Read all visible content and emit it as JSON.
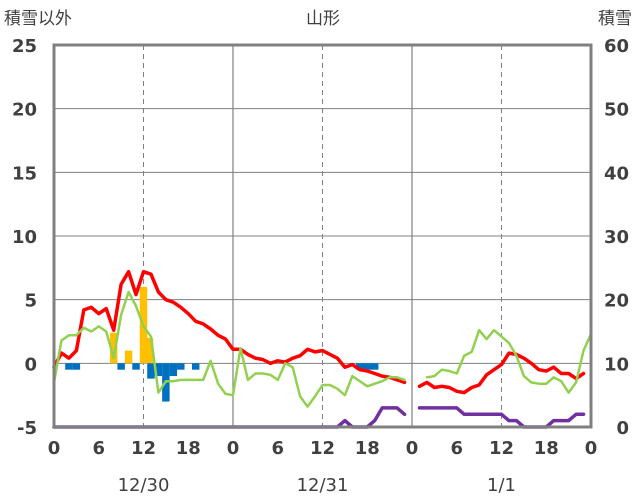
{
  "chart_data": {
    "type": "line",
    "title": "山形",
    "left_axis_label": "積雪以外",
    "right_axis_label": "積雪",
    "left_ylim": [
      -5,
      25
    ],
    "left_ticks": [
      -5,
      0,
      5,
      10,
      15,
      20,
      25
    ],
    "right_ylim": [
      0,
      60
    ],
    "right_ticks": [
      0,
      10,
      20,
      30,
      40,
      50,
      60
    ],
    "xlim": [
      0,
      72
    ],
    "x_tick_hours": [
      0,
      6,
      12,
      18,
      24,
      30,
      36,
      42,
      48,
      54,
      60,
      66,
      72
    ],
    "x_tick_labels": [
      "0",
      "6",
      "12",
      "18",
      "0",
      "6",
      "12",
      "18",
      "0",
      "6",
      "12",
      "18",
      "0"
    ],
    "date_labels": [
      {
        "hour": 12,
        "label": "12/30"
      },
      {
        "hour": 36,
        "label": "12/31"
      },
      {
        "hour": 60,
        "label": "1/1"
      }
    ],
    "grid": {
      "solid_hours": [
        24,
        48
      ],
      "dashed_hours": [
        12,
        36,
        60
      ]
    },
    "colors": {
      "temperature": "#ff0000",
      "wind": "#92d050",
      "snow_depth": "#7030a0",
      "precipitation": "#ffc000",
      "pressure_change": "#0070c0",
      "frame": "#808080",
      "grid": "#808080"
    },
    "series": [
      {
        "key": "temperature",
        "axis": "left",
        "points": [
          [
            0,
            -0.3
          ],
          [
            1,
            0.8
          ],
          [
            2,
            0.4
          ],
          [
            3,
            1.0
          ],
          [
            4,
            4.2
          ],
          [
            5,
            4.4
          ],
          [
            6,
            3.9
          ],
          [
            7,
            4.3
          ],
          [
            8,
            2.6
          ],
          [
            9,
            6.2
          ],
          [
            10,
            7.2
          ],
          [
            11,
            5.4
          ],
          [
            12,
            7.2
          ],
          [
            13,
            7.0
          ],
          [
            14,
            5.6
          ],
          [
            15,
            5.0
          ],
          [
            16,
            4.8
          ],
          [
            17,
            4.4
          ],
          [
            18,
            3.9
          ],
          [
            19,
            3.3
          ],
          [
            20,
            3.1
          ],
          [
            21,
            2.7
          ],
          [
            22,
            2.2
          ],
          [
            23,
            1.9
          ],
          [
            24,
            1.1
          ],
          [
            25,
            1.1
          ],
          [
            26,
            0.7
          ],
          [
            27,
            0.4
          ],
          [
            28,
            0.3
          ],
          [
            29,
            0.0
          ],
          [
            30,
            0.2
          ],
          [
            31,
            0.1
          ],
          [
            32,
            0.4
          ],
          [
            33,
            0.6
          ],
          [
            34,
            1.1
          ],
          [
            35,
            0.9
          ],
          [
            36,
            1.0
          ],
          [
            37,
            0.7
          ],
          [
            38,
            0.4
          ],
          [
            39,
            -0.3
          ],
          [
            40,
            -0.1
          ],
          [
            41,
            -0.5
          ],
          [
            42,
            -0.6
          ],
          [
            43,
            -0.8
          ],
          [
            44,
            -1.0
          ],
          [
            45,
            -1.1
          ],
          [
            46,
            -1.3
          ],
          [
            47,
            -1.5
          ],
          null,
          [
            49,
            -1.8
          ],
          [
            50,
            -1.5
          ],
          [
            51,
            -1.9
          ],
          [
            52,
            -1.8
          ],
          [
            53,
            -1.9
          ],
          [
            54,
            -2.2
          ],
          [
            55,
            -2.3
          ],
          [
            56,
            -1.9
          ],
          [
            57,
            -1.7
          ],
          [
            58,
            -0.9
          ],
          [
            59,
            -0.5
          ],
          [
            60,
            -0.1
          ],
          [
            61,
            0.8
          ],
          [
            62,
            0.7
          ],
          [
            63,
            0.4
          ],
          [
            64,
            0.0
          ],
          [
            65,
            -0.5
          ],
          [
            66,
            -0.6
          ],
          [
            67,
            -0.3
          ],
          [
            68,
            -0.8
          ],
          [
            69,
            -0.8
          ],
          [
            70,
            -1.2
          ],
          [
            71,
            -0.8
          ]
        ]
      },
      {
        "key": "wind",
        "axis": "left",
        "points": [
          [
            0,
            -1.5
          ],
          [
            1,
            1.8
          ],
          [
            2,
            2.2
          ],
          [
            3,
            2.2
          ],
          [
            4,
            2.8
          ],
          [
            5,
            2.5
          ],
          [
            6,
            2.9
          ],
          [
            7,
            2.5
          ],
          [
            8,
            0.4
          ],
          [
            9,
            3.8
          ],
          [
            10,
            5.6
          ],
          [
            11,
            4.5
          ],
          [
            12,
            2.9
          ],
          [
            13,
            2.1
          ],
          [
            14,
            -2.3
          ],
          [
            15,
            -1.4
          ],
          [
            16,
            -1.4
          ],
          [
            17,
            -1.3
          ],
          [
            18,
            -1.3
          ],
          [
            19,
            -1.3
          ],
          [
            20,
            -1.3
          ],
          [
            21,
            0.2
          ],
          [
            22,
            -1.6
          ],
          [
            23,
            -2.4
          ],
          [
            24,
            -2.5
          ],
          [
            25,
            1.2
          ],
          [
            26,
            -1.3
          ],
          [
            27,
            -0.8
          ],
          [
            28,
            -0.8
          ],
          [
            29,
            -0.9
          ],
          [
            30,
            -1.3
          ],
          [
            31,
            0.0
          ],
          [
            32,
            -0.3
          ],
          [
            33,
            -2.6
          ],
          [
            34,
            -3.4
          ],
          [
            35,
            -2.6
          ],
          [
            36,
            -1.7
          ],
          [
            37,
            -1.7
          ],
          [
            38,
            -2.0
          ],
          [
            39,
            -2.5
          ],
          [
            40,
            -1.0
          ],
          [
            41,
            -1.4
          ],
          [
            42,
            -1.8
          ],
          [
            43,
            -1.6
          ],
          [
            44,
            -1.4
          ],
          [
            45,
            -1.1
          ],
          [
            46,
            -1.1
          ],
          [
            47,
            -1.3
          ],
          null,
          [
            50,
            -1.1
          ],
          [
            51,
            -1.0
          ],
          [
            52,
            -0.5
          ],
          [
            53,
            -0.6
          ],
          [
            54,
            -0.8
          ],
          [
            55,
            0.6
          ],
          [
            56,
            0.9
          ],
          [
            57,
            2.6
          ],
          [
            58,
            1.9
          ],
          [
            59,
            2.6
          ],
          [
            60,
            2.1
          ],
          [
            61,
            1.6
          ],
          [
            62,
            0.6
          ],
          [
            63,
            -1.0
          ],
          [
            64,
            -1.5
          ],
          [
            65,
            -1.6
          ],
          [
            66,
            -1.6
          ],
          [
            67,
            -1.1
          ],
          [
            68,
            -1.4
          ],
          [
            69,
            -2.3
          ],
          [
            70,
            -1.5
          ],
          [
            71,
            1.0
          ],
          [
            72,
            2.3
          ]
        ]
      },
      {
        "key": "snow_depth",
        "axis": "right",
        "points": [
          [
            0,
            0
          ],
          [
            36,
            0
          ],
          [
            37,
            0
          ],
          [
            38,
            0
          ],
          [
            39,
            1
          ],
          [
            40,
            0
          ],
          [
            41,
            0
          ],
          [
            42,
            0
          ],
          [
            43,
            1
          ],
          [
            44,
            3
          ],
          [
            45,
            3
          ],
          [
            46,
            3
          ],
          [
            47,
            2
          ],
          null,
          [
            49,
            3
          ],
          [
            50,
            3
          ],
          [
            51,
            3
          ],
          [
            52,
            3
          ],
          [
            53,
            3
          ],
          [
            54,
            3
          ],
          [
            55,
            2
          ],
          [
            56,
            2
          ],
          [
            57,
            2
          ],
          [
            58,
            2
          ],
          [
            59,
            2
          ],
          [
            60,
            2
          ],
          [
            61,
            1
          ],
          [
            62,
            1
          ],
          [
            63,
            0
          ],
          [
            64,
            0
          ],
          [
            65,
            0
          ],
          [
            66,
            0
          ],
          [
            67,
            1
          ],
          [
            68,
            1
          ],
          [
            69,
            1
          ],
          [
            70,
            2
          ],
          [
            71,
            2
          ]
        ]
      }
    ],
    "bars": [
      {
        "key": "precipitation",
        "axis": "left",
        "width_hours": 1,
        "values": [
          [
            8,
            2.4
          ],
          [
            10,
            1.0
          ],
          [
            12,
            6.0
          ],
          [
            12.8,
            2.0
          ]
        ]
      },
      {
        "key": "pressure_change",
        "axis": "left",
        "width_hours": 1,
        "values": [
          [
            2,
            -0.5
          ],
          [
            3,
            -0.5
          ],
          [
            9,
            -0.5
          ],
          [
            11,
            -0.5
          ],
          [
            13,
            -1.2
          ],
          [
            14,
            -1.0
          ],
          [
            15,
            -3.0
          ],
          [
            16,
            -1.0
          ],
          [
            17,
            -0.5
          ],
          [
            19,
            -0.5
          ],
          [
            41,
            -0.5
          ],
          [
            42,
            -0.5
          ],
          [
            43,
            -0.5
          ]
        ]
      }
    ]
  }
}
